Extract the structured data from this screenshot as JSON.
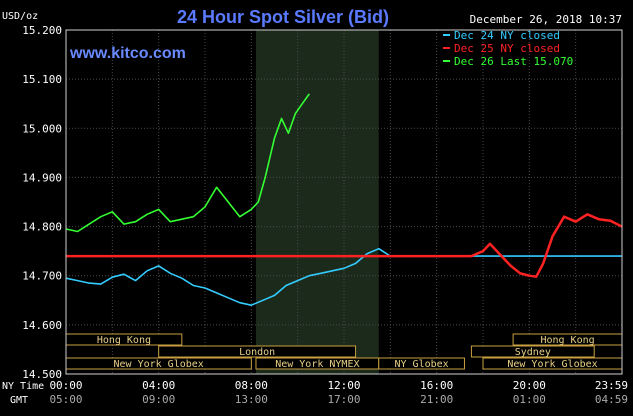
{
  "chart_data": {
    "type": "line",
    "title": "24 Hour Spot Silver (Bid)",
    "ylabel": "USD/oz",
    "website": "www.kitco.com",
    "timestamp": "December 26, 2018 10:37",
    "ylim": [
      14.5,
      15.2
    ],
    "y_ticks": [
      "15.200",
      "15.100",
      "15.000",
      "14.900",
      "14.800",
      "14.700",
      "14.600",
      "14.500"
    ],
    "x_axis_ny_label": "NY Time",
    "x_axis_gmt_label": "GMT",
    "x_ticks_ny": [
      "00:00",
      "04:00",
      "08:00",
      "12:00",
      "16:00",
      "20:00",
      "23:59"
    ],
    "x_ticks_gmt": [
      "05:00",
      "09:00",
      "13:00",
      "17:00",
      "21:00",
      "01:00",
      "04:59"
    ],
    "x_tick_hours": [
      0,
      4,
      8,
      12,
      16,
      20,
      23.98
    ],
    "legend": [
      {
        "label": "Dec 24 NY closed",
        "color": "#33ccff"
      },
      {
        "label": "Dec 25 NY closed",
        "color": "#ff2222"
      },
      {
        "label": "Dec 26 Last 15.070",
        "color": "#33ff33"
      }
    ],
    "sessions": [
      {
        "label": "Hong Kong",
        "start_hour": 0,
        "end_hour": 5,
        "row": 0
      },
      {
        "label": "London",
        "start_hour": 4,
        "end_hour": 12.5,
        "row": 1
      },
      {
        "label": "New York Globex",
        "start_hour": 0,
        "end_hour": 8,
        "row": 2
      },
      {
        "label": "New York NYMEX",
        "start_hour": 8.2,
        "end_hour": 13.5,
        "row": 2
      },
      {
        "label": "NY Globex",
        "start_hour": 13.5,
        "end_hour": 17.2,
        "row": 2
      },
      {
        "label": "Hong Kong",
        "start_hour": 19.3,
        "end_hour": 24,
        "row": 0
      },
      {
        "label": "Sydney",
        "start_hour": 17.5,
        "end_hour": 22.8,
        "row": 1
      },
      {
        "label": "New York Globex",
        "start_hour": 18,
        "end_hour": 24,
        "row": 2
      }
    ],
    "highlight_hours": [
      8.2,
      13.5
    ],
    "series": [
      {
        "name": "Dec 24 NY closed",
        "color": "#33ccff",
        "x": [
          0,
          0.5,
          1,
          1.5,
          2,
          2.5,
          3,
          3.5,
          4,
          4.5,
          5,
          5.5,
          6,
          6.5,
          7,
          7.5,
          8,
          8.5,
          9,
          9.5,
          10,
          10.5,
          11,
          11.5,
          12,
          12.5,
          13,
          13.5,
          14,
          18,
          19,
          20,
          21,
          22,
          23,
          24
        ],
        "values": [
          14.695,
          14.69,
          14.685,
          14.683,
          14.697,
          14.703,
          14.69,
          14.71,
          14.72,
          14.705,
          14.695,
          14.68,
          14.675,
          14.665,
          14.655,
          14.645,
          14.64,
          14.65,
          14.66,
          14.68,
          14.69,
          14.7,
          14.705,
          14.71,
          14.715,
          14.725,
          14.745,
          14.755,
          14.74,
          14.74,
          14.74,
          14.74,
          14.74,
          14.74,
          14.74,
          14.74
        ]
      },
      {
        "name": "Dec 25 NY closed",
        "color": "#ff2222",
        "x": [
          0,
          2,
          4,
          6,
          8,
          10,
          12,
          14,
          16,
          17.5,
          18,
          18.3,
          18.7,
          19.2,
          19.6,
          20,
          20.3,
          20.6,
          21,
          21.5,
          22,
          22.5,
          23,
          23.5,
          24
        ],
        "values": [
          14.74,
          14.74,
          14.74,
          14.74,
          14.74,
          14.74,
          14.74,
          14.74,
          14.74,
          14.74,
          14.75,
          14.765,
          14.745,
          14.72,
          14.705,
          14.7,
          14.698,
          14.725,
          14.78,
          14.82,
          14.81,
          14.825,
          14.815,
          14.812,
          14.8
        ]
      },
      {
        "name": "Dec 26 Last 15.070",
        "color": "#33ff33",
        "x": [
          0,
          0.5,
          1,
          1.5,
          2,
          2.5,
          3,
          3.5,
          4,
          4.5,
          5,
          5.5,
          6,
          6.5,
          7,
          7.5,
          8,
          8.3,
          8.6,
          9,
          9.3,
          9.6,
          9.9,
          10.2,
          10.5
        ],
        "values": [
          14.795,
          14.79,
          14.805,
          14.82,
          14.83,
          14.805,
          14.81,
          14.825,
          14.835,
          14.81,
          14.815,
          14.82,
          14.84,
          14.88,
          14.85,
          14.82,
          14.835,
          14.85,
          14.9,
          14.98,
          15.02,
          14.99,
          15.03,
          15.05,
          15.07
        ]
      }
    ]
  }
}
